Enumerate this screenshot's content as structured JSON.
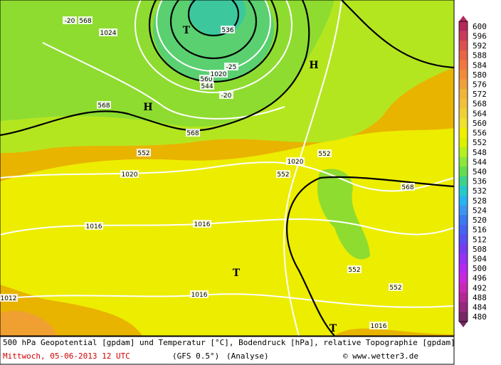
{
  "map": {
    "labels": [
      "-20",
      "568",
      "1024",
      "T",
      "536",
      "-25",
      "560",
      "1020",
      "544",
      "-20",
      "H",
      "H",
      "568",
      "568",
      "552",
      "1020",
      "552",
      "1020",
      "552",
      "568",
      "1016",
      "1016",
      "T",
      "552",
      "1016",
      "552",
      "1012",
      "T",
      "1016"
    ]
  },
  "colorbar": {
    "levels": [
      600,
      596,
      592,
      588,
      584,
      580,
      576,
      572,
      568,
      564,
      560,
      556,
      552,
      548,
      544,
      540,
      536,
      532,
      528,
      524,
      520,
      516,
      512,
      508,
      504,
      500,
      496,
      492,
      488,
      484,
      480
    ],
    "colors": [
      "#b4285a",
      "#c83c5a",
      "#dc5050",
      "#e86446",
      "#f07840",
      "#f08c3c",
      "#f0a03c",
      "#f0b43c",
      "#f0c03c",
      "#f0d038",
      "#f0e030",
      "#f0f000",
      "#dcf000",
      "#b4f01e",
      "#8ce63c",
      "#64dc50",
      "#3cd28c",
      "#28c8c8",
      "#28b4f0",
      "#3c96f0",
      "#3c78f0",
      "#4664f0",
      "#5a50f0",
      "#783cf0",
      "#9632f0",
      "#b428f0",
      "#c828dc",
      "#c828b4",
      "#b42896",
      "#96287d",
      "#782864"
    ]
  },
  "footer": {
    "title": "500 hPa Geopotential [gpdam] und Temperatur [°C], Bodendruck [hPa], relative Topographie [gpdam]",
    "date": "Mittwoch, 05-06-2013  12 UTC",
    "model": "(GFS 0.5°)",
    "run": "(Analyse)",
    "credit": "© www.wetter3.de"
  }
}
